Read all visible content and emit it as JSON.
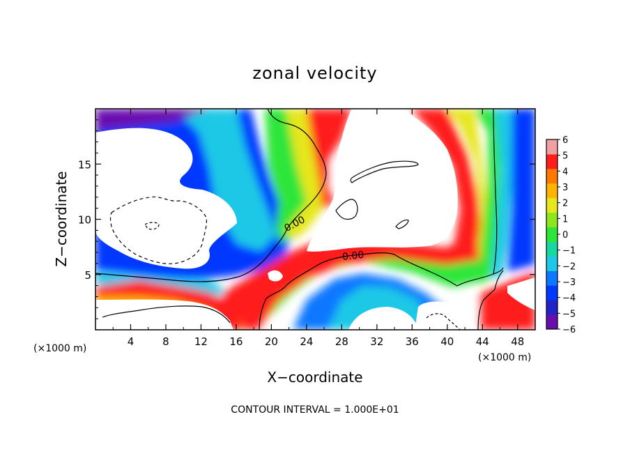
{
  "chart_data": {
    "type": "heatmap",
    "title": "zonal velocity",
    "xlabel": "X−coordinate",
    "ylabel": "Z−coordinate",
    "x_unit_left": "(×1000 m)",
    "x_unit_right": "(×1000 m)",
    "xlim": [
      0,
      50
    ],
    "ylim": [
      0,
      20
    ],
    "x_ticks": [
      4,
      8,
      12,
      16,
      20,
      24,
      28,
      32,
      36,
      40,
      44,
      48
    ],
    "y_ticks": [
      5,
      10,
      15
    ],
    "contour_labels": [
      {
        "text": "0.00",
        "x": 22.7,
        "z": 9.5
      },
      {
        "text": "0.00",
        "x": 29.3,
        "z": 6.6
      }
    ],
    "footer": "CONTOUR INTERVAL = 1.000E+01",
    "colorbar": {
      "levels": [
        -6,
        -5,
        -4,
        -3,
        -2,
        -1,
        0,
        1,
        2,
        3,
        4,
        5,
        6
      ],
      "labels": [
        "6",
        "5",
        "4",
        "3",
        "2",
        "1",
        "0",
        "−1",
        "−2",
        "−3",
        "−4",
        "−5",
        "−6"
      ]
    },
    "colors": {
      "neg6": "#6a0dad",
      "neg5": "#2323c8",
      "neg4": "#0038ff",
      "neg3": "#0a78ff",
      "neg2": "#1ec8e6",
      "neg1": "#16d8a0",
      "zero": "#2ee63a",
      "pos1": "#8ee61e",
      "pos2": "#e6e61e",
      "pos3": "#ffb400",
      "pos4": "#ff7800",
      "pos5": "#ff1e1e",
      "pos6": "#f0a0a0"
    }
  }
}
